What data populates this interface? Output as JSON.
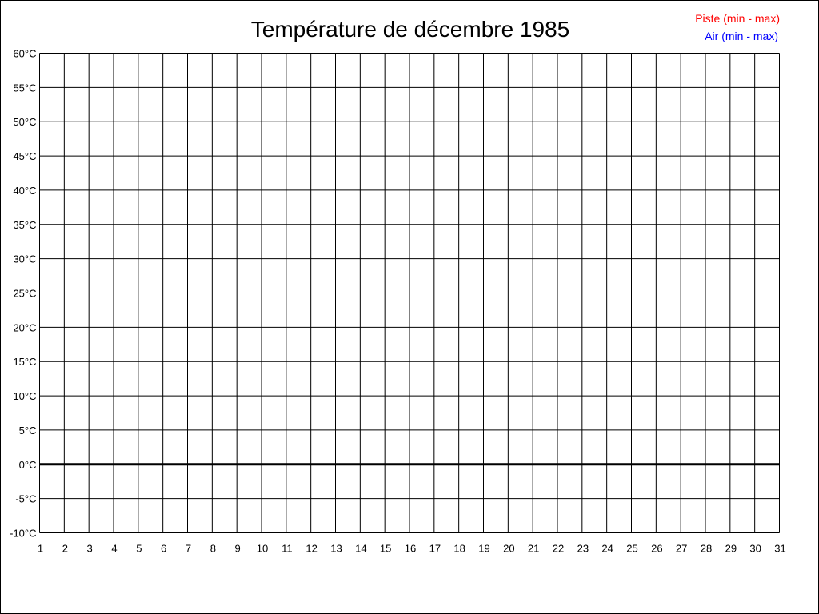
{
  "chart_data": {
    "type": "line",
    "title": "Température de décembre 1985",
    "xlabel": "",
    "ylabel": "",
    "x_ticks": [
      "1",
      "2",
      "3",
      "4",
      "5",
      "6",
      "7",
      "8",
      "9",
      "10",
      "11",
      "12",
      "13",
      "14",
      "15",
      "16",
      "17",
      "18",
      "19",
      "20",
      "21",
      "22",
      "23",
      "24",
      "25",
      "26",
      "27",
      "28",
      "29",
      "30",
      "31"
    ],
    "y_ticks": [
      "-10°C",
      "-5°C",
      "0°C",
      "5°C",
      "10°C",
      "15°C",
      "20°C",
      "25°C",
      "30°C",
      "35°C",
      "40°C",
      "45°C",
      "50°C",
      "55°C",
      "60°C"
    ],
    "xlim": [
      1,
      31
    ],
    "ylim": [
      -10,
      60
    ],
    "y_step": 5,
    "grid": true,
    "zero_line_emphasized": true,
    "legend_placement": "top-right",
    "series": [
      {
        "name": "Piste (min - max)",
        "color": "#ff0000",
        "values": []
      },
      {
        "name": "Air (min - max)",
        "color": "#0000ff",
        "values": []
      }
    ]
  }
}
